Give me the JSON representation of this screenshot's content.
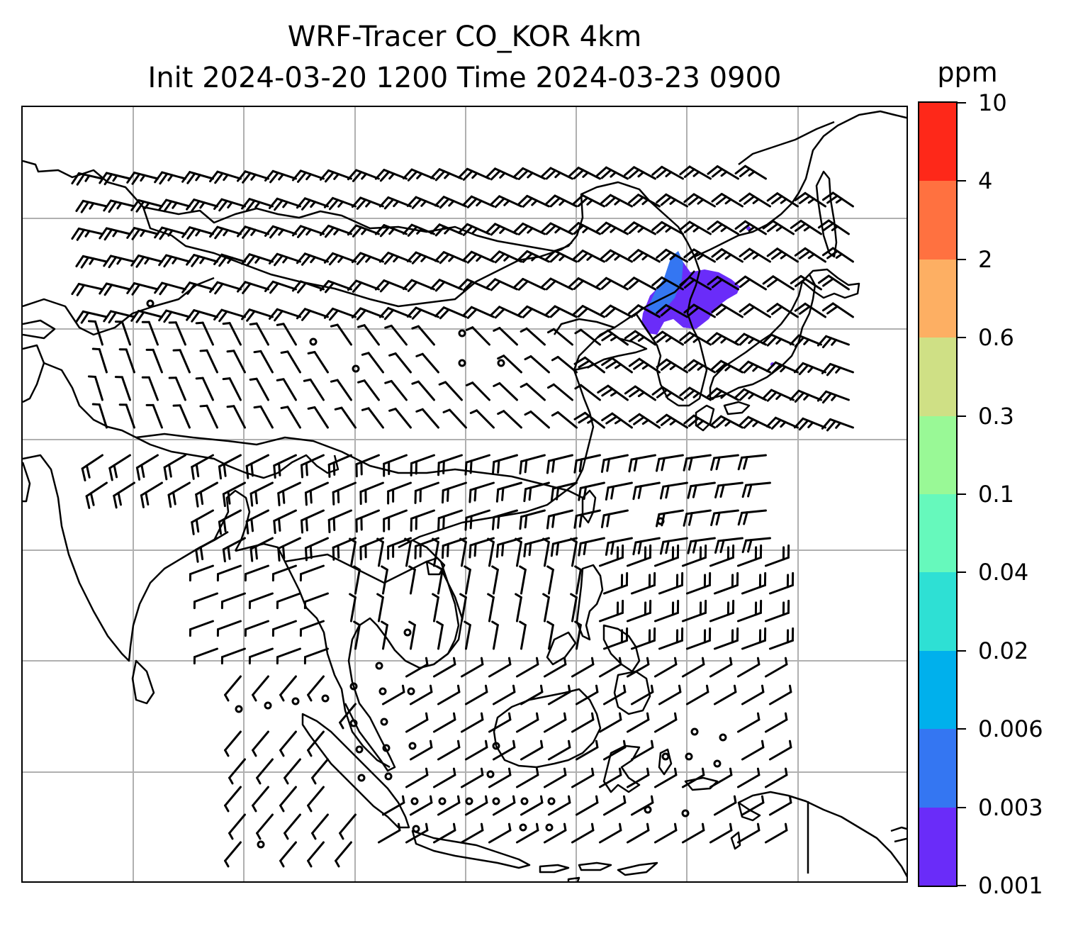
{
  "title": {
    "line1": "WRF-Tracer CO_KOR 4km",
    "line2": "Init 2024-03-20 1200 Time 2024-03-23 0900"
  },
  "colorbar": {
    "unit": "ppm",
    "tick_labels": [
      "0.001",
      "0.003",
      "0.006",
      "0.02",
      "0.04",
      "0.1",
      "0.3",
      "0.6",
      "2",
      "4",
      "10"
    ],
    "colors": [
      "#6a2cf9",
      "#3476f2",
      "#00b0ec",
      "#2ee0d4",
      "#66f9bc",
      "#99f996",
      "#cfe085",
      "#fdaf63",
      "#ff7140",
      "#fe2819"
    ]
  },
  "map": {
    "gridline_color": "#b0b0b0",
    "coastline_color": "#000000",
    "wind_barb_color": "#000000",
    "plume_colors": {
      "outer": "#6a2cf9",
      "core": "#3476f2"
    }
  }
}
